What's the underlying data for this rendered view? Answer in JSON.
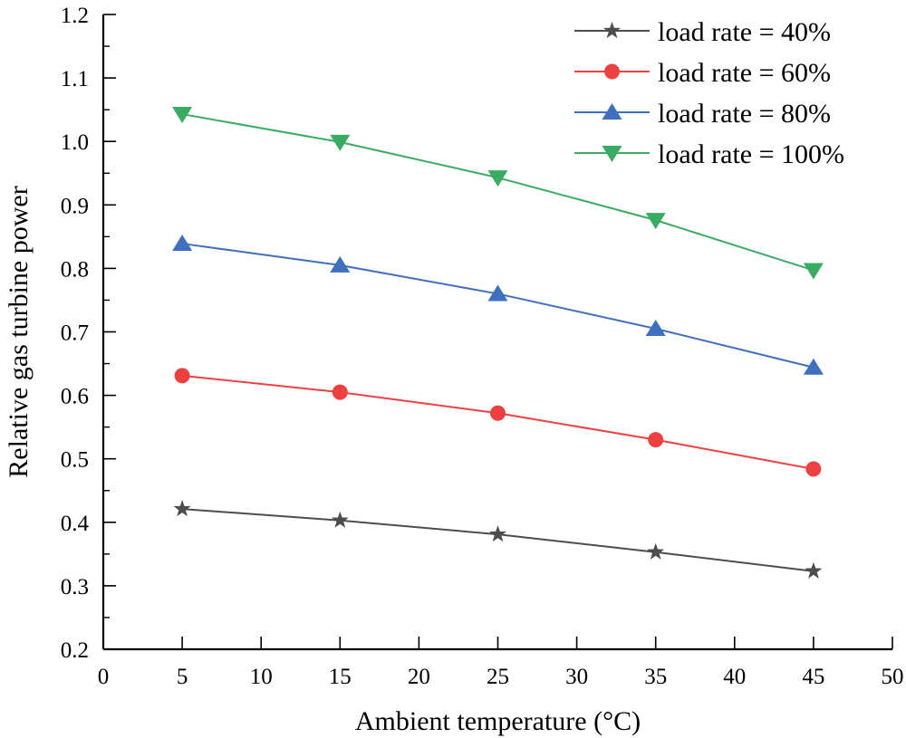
{
  "chart_data": {
    "type": "line",
    "title": "",
    "xlabel": "Ambient temperature (°C)",
    "ylabel": "Relative gas turbine power",
    "xlim": [
      0,
      50
    ],
    "ylim": [
      0.2,
      1.2
    ],
    "xticks": [
      0,
      5,
      10,
      15,
      20,
      25,
      30,
      35,
      40,
      45,
      50
    ],
    "xtick_labels": [
      "0",
      "5",
      "10",
      "15",
      "20",
      "25",
      "30",
      "35",
      "40",
      "45",
      "50"
    ],
    "yticks": [
      0.2,
      0.3,
      0.4,
      0.5,
      0.6,
      0.7,
      0.8,
      0.9,
      1.0,
      1.1,
      1.2
    ],
    "ytick_labels": [
      "0.2",
      "0.3",
      "0.4",
      "0.5",
      "0.6",
      "0.7",
      "0.8",
      "0.9",
      "1.0",
      "1.1",
      "1.2"
    ],
    "y_minor_step": 0.05,
    "grid": false,
    "legend_position": "top-right",
    "x": [
      5,
      15,
      25,
      35,
      45
    ],
    "series": [
      {
        "name": "load rate = 40%",
        "marker": "star",
        "color": "#4d4d4d",
        "values": [
          0.421,
          0.403,
          0.381,
          0.353,
          0.323
        ]
      },
      {
        "name": "load rate = 60%",
        "marker": "circle",
        "color": "#ee4040",
        "values": [
          0.631,
          0.605,
          0.572,
          0.53,
          0.484
        ]
      },
      {
        "name": "load rate = 80%",
        "marker": "triangle-up",
        "color": "#3f6fbf",
        "values": [
          0.839,
          0.805,
          0.76,
          0.705,
          0.644
        ]
      },
      {
        "name": "load rate = 100%",
        "marker": "triangle-down",
        "color": "#3aab62",
        "values": [
          1.043,
          0.999,
          0.943,
          0.876,
          0.797
        ]
      }
    ]
  }
}
